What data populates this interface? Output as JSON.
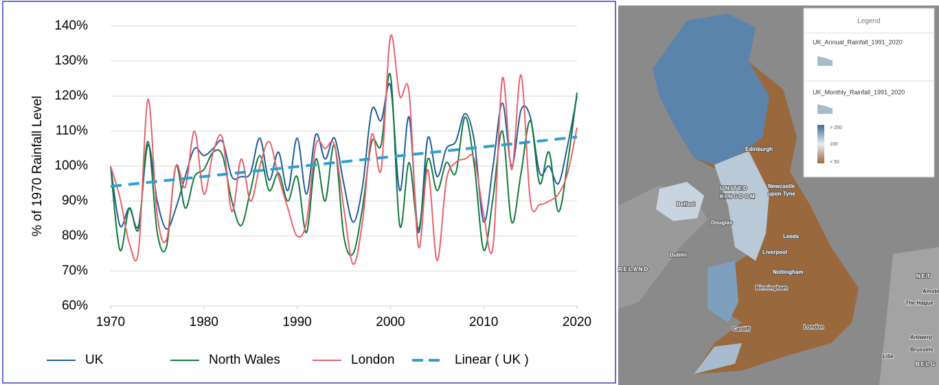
{
  "chart_data": {
    "type": "line",
    "y_label": "% of 1970 Rainfall Level",
    "x": [
      1970,
      1971,
      1972,
      1973,
      1974,
      1975,
      1976,
      1977,
      1978,
      1979,
      1980,
      1981,
      1982,
      1983,
      1984,
      1985,
      1986,
      1987,
      1988,
      1989,
      1990,
      1991,
      1992,
      1993,
      1994,
      1995,
      1996,
      1997,
      1998,
      1999,
      2000,
      2001,
      2002,
      2003,
      2004,
      2005,
      2006,
      2007,
      2008,
      2009,
      2010,
      2011,
      2012,
      2013,
      2014,
      2015,
      2016,
      2017,
      2018,
      2019,
      2020
    ],
    "series": [
      {
        "name": "UK",
        "color": "#1f5c99",
        "values": [
          100,
          83,
          88,
          83,
          106,
          90,
          82,
          88,
          97,
          105,
          103,
          105,
          107,
          97,
          97,
          98,
          108,
          96,
          104,
          93,
          108,
          92,
          109,
          102,
          108,
          95,
          84,
          94,
          116,
          113,
          123,
          93,
          114,
          81,
          108,
          97,
          105,
          107,
          115,
          107,
          84,
          100,
          118,
          100,
          116,
          114,
          98,
          100,
          95,
          106,
          120
        ]
      },
      {
        "name": "North Wales",
        "color": "#107a3c",
        "values": [
          100,
          76,
          88,
          82,
          107,
          81,
          77,
          100,
          88,
          97,
          99,
          104,
          103,
          90,
          83,
          93,
          103,
          93,
          98,
          90,
          97,
          81,
          102,
          90,
          106,
          80,
          75,
          88,
          107,
          106,
          126,
          83,
          101,
          82,
          102,
          93,
          101,
          98,
          114,
          100,
          76,
          91,
          110,
          84,
          98,
          113,
          95,
          104,
          87,
          101,
          121
        ]
      },
      {
        "name": "London",
        "color": "#e8616b",
        "values": [
          100,
          91,
          78,
          76,
          119,
          86,
          79,
          100,
          94,
          110,
          92,
          104,
          108,
          87,
          102,
          90,
          100,
          107,
          97,
          88,
          80,
          84,
          106,
          105,
          106,
          88,
          72,
          84,
          109,
          99,
          137,
          120,
          121,
          77,
          99,
          73,
          96,
          101,
          102,
          102,
          86,
          77,
          125,
          99,
          126,
          90,
          89,
          90,
          92,
          98,
          111
        ]
      }
    ],
    "trendline": {
      "name": "Linear ( UK )",
      "color": "#2e9fd0",
      "x": [
        1970,
        2020
      ],
      "values": [
        94.2,
        108.3
      ]
    },
    "xlim": [
      1970,
      2020
    ],
    "xticks": [
      1970,
      1980,
      1990,
      2000,
      2010,
      2020
    ],
    "ylim": [
      60,
      140
    ],
    "yticks": [
      {
        "value": 60,
        "label": "60%"
      },
      {
        "value": 70,
        "label": "70%"
      },
      {
        "value": 80,
        "label": "80%"
      },
      {
        "value": 90,
        "label": "90%"
      },
      {
        "value": 100,
        "label": "100%"
      },
      {
        "value": 110,
        "label": "110%"
      },
      {
        "value": 120,
        "label": "120%"
      },
      {
        "value": 130,
        "label": "130%"
      },
      {
        "value": 140,
        "label": "140%"
      }
    ],
    "grid": true,
    "legend": "bottom"
  },
  "map": {
    "legend_title": "Legend",
    "layers": [
      "UK_Annual_Rainfall_1991_2020",
      "UK_Monthly_Rainfall_1991_2020"
    ],
    "scale_labels": [
      "> 250",
      "100",
      "< 50"
    ],
    "labels": [
      "Edinburgh",
      "UNITED",
      "KINGDOM",
      "Newcastle",
      "upon Tyne",
      "Belfast",
      "Douglas",
      "Leeds",
      "Dublin",
      "Liverpool",
      "RELAND",
      "Nottingham",
      "NET",
      "Amste",
      "The Hague",
      "Birmingham",
      "Cardiff",
      "London",
      "Antwerp",
      "Brussels",
      "Lille",
      "BELG"
    ]
  }
}
